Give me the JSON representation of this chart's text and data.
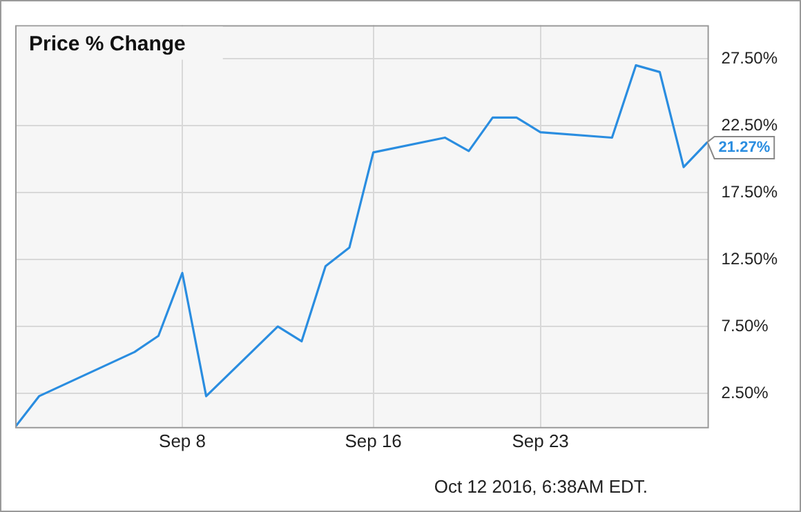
{
  "chart_data": {
    "type": "line",
    "title": "Price % Change",
    "x": [
      "--09-01",
      "--09-02",
      "--09-06",
      "--09-07",
      "--09-08",
      "--09-09",
      "--09-12",
      "--09-13",
      "--09-14",
      "--09-15",
      "--09-16",
      "--09-19",
      "--09-20",
      "--09-21",
      "--09-22",
      "--09-23",
      "--09-26",
      "--09-27",
      "--09-28",
      "--09-29",
      "--09-30"
    ],
    "series": [
      {
        "color": "#2a8de0",
        "values": [
          0,
          2.3,
          5.6,
          6.8,
          11.5,
          2.3,
          7.5,
          6.4,
          12.0,
          13.4,
          20.5,
          21.6,
          20.6,
          23.1,
          23.1,
          22.0,
          21.6,
          27.0,
          26.5,
          19.4,
          21.27
        ],
        "value_labels": [
          null,
          null,
          null,
          null,
          null,
          null,
          null,
          null,
          null,
          null,
          null,
          null,
          null,
          null,
          null,
          null,
          null,
          null,
          null,
          null,
          "21.27%"
        ]
      }
    ],
    "xlim": [
      "--09-01",
      "--09-30"
    ],
    "xticks": [
      {
        "value": "--09-08",
        "label": "Sep 8"
      },
      {
        "value": "--09-16",
        "label": "Sep 16"
      },
      {
        "value": "--09-23",
        "label": "Sep 23"
      }
    ],
    "ylim": [
      0,
      30
    ],
    "yticks": [
      {
        "value": 2.5,
        "label": "2.50%"
      },
      {
        "value": 7.5,
        "label": "7.50%"
      },
      {
        "value": 12.5,
        "label": "12.50%"
      },
      {
        "value": 17.5,
        "label": "17.50%"
      },
      {
        "value": 22.5,
        "label": "22.50%"
      },
      {
        "value": 27.5,
        "label": "27.50%"
      }
    ],
    "grid": true,
    "legend": false,
    "marker": "none",
    "line_style": "solid",
    "annotations": [
      "Oct 12 2016, 6:38AM EDT."
    ]
  }
}
